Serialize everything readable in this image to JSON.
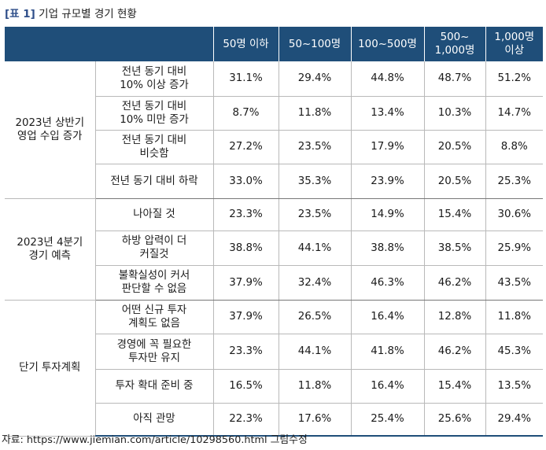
{
  "title": {
    "tag": "[표 1]",
    "text": "기업 규모별 경기 현황"
  },
  "columns": [
    "50명 이하",
    "50~100명",
    "100~500명",
    "500~\n1,000명",
    "1,000명\n이상"
  ],
  "groups": [
    {
      "label": "2023년 상반기\n영업 수입 증가",
      "rows": [
        {
          "label": "전년 동기 대비\n10% 이상 증가",
          "values": [
            "31.1%",
            "29.4%",
            "44.8%",
            "48.7%",
            "51.2%"
          ]
        },
        {
          "label": "전년 동기 대비\n10% 미만 증가",
          "values": [
            "8.7%",
            "11.8%",
            "13.4%",
            "10.3%",
            "14.7%"
          ]
        },
        {
          "label": "전년 동기 대비\n비슷함",
          "values": [
            "27.2%",
            "23.5%",
            "17.9%",
            "20.5%",
            "8.8%"
          ]
        },
        {
          "label": "전년 동기 대비 하락",
          "values": [
            "33.0%",
            "35.3%",
            "23.9%",
            "20.5%",
            "25.3%"
          ]
        }
      ]
    },
    {
      "label": "2023년 4분기\n경기 예측",
      "rows": [
        {
          "label": "나아질 것",
          "values": [
            "23.3%",
            "23.5%",
            "14.9%",
            "15.4%",
            "30.6%"
          ]
        },
        {
          "label": "하방 압력이 더\n커질것",
          "values": [
            "38.8%",
            "44.1%",
            "38.8%",
            "38.5%",
            "25.9%"
          ]
        },
        {
          "label": "불확실성이 커서\n판단할 수 없음",
          "values": [
            "37.9%",
            "32.4%",
            "46.3%",
            "46.2%",
            "43.5%"
          ]
        }
      ]
    },
    {
      "label": "단기 투자계획",
      "rows": [
        {
          "label": "어떤 신규 투자\n계획도 없음",
          "values": [
            "37.9%",
            "26.5%",
            "16.4%",
            "12.8%",
            "11.8%"
          ]
        },
        {
          "label": "경영에 꼭 필요한\n투자만 유지",
          "values": [
            "23.3%",
            "44.1%",
            "41.8%",
            "46.2%",
            "45.3%"
          ]
        },
        {
          "label": "투자 확대 준비 중",
          "values": [
            "16.5%",
            "11.8%",
            "16.4%",
            "15.4%",
            "13.5%"
          ]
        },
        {
          "label": "아직 관망",
          "values": [
            "22.3%",
            "17.6%",
            "25.4%",
            "25.6%",
            "29.4%"
          ]
        }
      ]
    }
  ],
  "source": "자료: https://www.jiemian.com/article/10298560.html 그림수정"
}
